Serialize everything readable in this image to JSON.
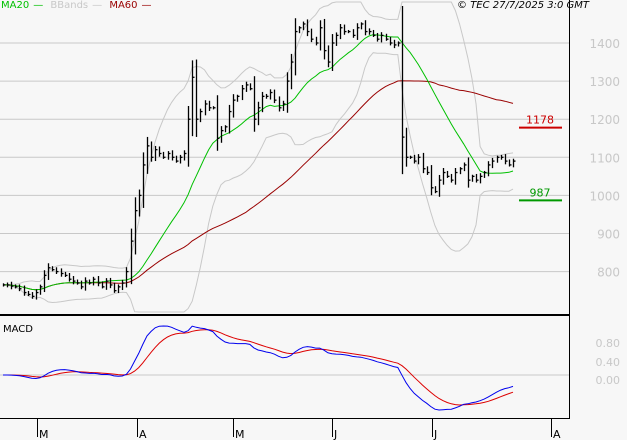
{
  "legend": {
    "ma20": {
      "label": "MA20",
      "color": "#00c000"
    },
    "bbands": {
      "label": "BBands",
      "color": "#c8c8c8"
    },
    "ma60": {
      "label": "MA60",
      "color": "#990000"
    }
  },
  "copyright": "© TEC 27/7/2025 3:0 GMT",
  "chart_data": {
    "type": "ohlc-bar",
    "price_axis": {
      "ticks": [
        800,
        900,
        1000,
        1100,
        1200,
        1300,
        1400
      ],
      "labels": [
        "800",
        "900",
        "1000",
        "1100",
        "1200",
        "1300",
        "1400"
      ],
      "range": [
        700,
        1470
      ],
      "grid": true
    },
    "month_labels": [
      "M",
      "A",
      "M",
      "J",
      "J",
      "A"
    ],
    "closes": [
      765,
      765,
      762,
      760,
      755,
      745,
      740,
      735,
      745,
      760,
      790,
      810,
      805,
      800,
      795,
      790,
      780,
      775,
      770,
      760,
      775,
      770,
      780,
      770,
      760,
      775,
      765,
      750,
      760,
      770,
      800,
      880,
      960,
      1000,
      1080,
      1130,
      1100,
      1120,
      1110,
      1100,
      1110,
      1100,
      1090,
      1100,
      1110,
      1200,
      1310,
      1200,
      1220,
      1240,
      1230,
      1230,
      1150,
      1170,
      1180,
      1220,
      1250,
      1260,
      1280,
      1290,
      1280,
      1200,
      1230,
      1260,
      1260,
      1270,
      1250,
      1230,
      1240,
      1300,
      1350,
      1430,
      1440,
      1450,
      1430,
      1410,
      1400,
      1440,
      1380,
      1350,
      1400,
      1420,
      1440,
      1430,
      1430,
      1420,
      1440,
      1450,
      1430,
      1430,
      1420,
      1410,
      1420,
      1410,
      1400,
      1395,
      1400,
      1153,
      1100,
      1100,
      1090,
      1100,
      1070,
      1060,
      1020,
      1010,
      1040,
      1060,
      1050,
      1040,
      1060,
      1070,
      1080,
      1040,
      1050,
      1040,
      1050,
      1060,
      1080,
      1090,
      1100,
      1100,
      1090,
      1080,
      1090
    ],
    "levels": [
      {
        "label": "1178",
        "value": 1178,
        "color": "#cc0000"
      },
      {
        "label": "987",
        "value": 987,
        "color": "#009900"
      }
    ],
    "series": [
      {
        "name": "MA20",
        "color": "#00c000"
      },
      {
        "name": "BBands",
        "color": "#c8c8c8"
      },
      {
        "name": "MA60",
        "color": "#990000"
      }
    ],
    "macd": {
      "title": "MACD",
      "ticks": [
        "0.80",
        "0.40",
        "0.00"
      ],
      "tick_values": [
        0.8,
        0.4,
        0.0
      ],
      "macd_color": "#0000ee",
      "signal_color": "#dd0000"
    }
  }
}
